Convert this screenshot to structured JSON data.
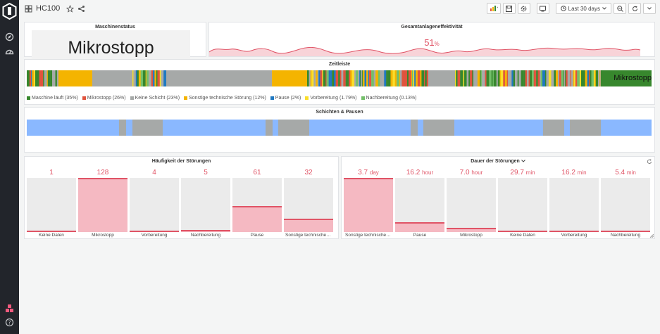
{
  "header": {
    "title": "HC100",
    "time_range": "Last 30 days"
  },
  "panels": {
    "maschinenstatus": {
      "title": "Maschinenstatus",
      "value": "Mikrostopp"
    },
    "oee": {
      "title": "Gesamtanlageneffektivität",
      "value": "51",
      "unit": "%"
    },
    "zeitleiste": {
      "title": "Zeitleiste",
      "current_state": "Mikrostopp",
      "legend": [
        {
          "label": "Maschine läuft (35%)",
          "color": "#37872d"
        },
        {
          "label": "Mikrostopp (26%)",
          "color": "#e0533d"
        },
        {
          "label": "Keine Schicht (23%)",
          "color": "#a6a9a8"
        },
        {
          "label": "Sonstige technische Störung (12%)",
          "color": "#f4b400"
        },
        {
          "label": "Pause (2%)",
          "color": "#1f78c1"
        },
        {
          "label": "Vorbereitung (1.79%)",
          "color": "#fade2a"
        },
        {
          "label": "Nachbereitung (0.13%)",
          "color": "#73bf69"
        }
      ]
    },
    "schichten": {
      "title": "Schichten & Pausen"
    },
    "haeufigkeit": {
      "title": "Häufigkeit der Störungen",
      "items": [
        {
          "label": "Keine Daten",
          "value": "1",
          "fill": 0.01
        },
        {
          "label": "Mikrostopp",
          "value": "128",
          "fill": 1.0
        },
        {
          "label": "Vorbereitung",
          "value": "4",
          "fill": 0.03
        },
        {
          "label": "Nachbereitung",
          "value": "5",
          "fill": 0.04
        },
        {
          "label": "Pause",
          "value": "61",
          "fill": 0.48
        },
        {
          "label": "Sonstige technische S...",
          "value": "32",
          "fill": 0.25
        }
      ]
    },
    "dauer": {
      "title": "Dauer der Störungen",
      "items": [
        {
          "label": "Sonstige technische S...",
          "value": "3.7",
          "unit": "day",
          "fill": 1.0
        },
        {
          "label": "Pause",
          "value": "16.2",
          "unit": "hour",
          "fill": 0.18
        },
        {
          "label": "Mikrostopp",
          "value": "7.0",
          "unit": "hour",
          "fill": 0.08
        },
        {
          "label": "Keine Daten",
          "value": "29.7",
          "unit": "min",
          "fill": 0.01
        },
        {
          "label": "Vorbereitung",
          "value": "16.2",
          "unit": "min",
          "fill": 0.005
        },
        {
          "label": "Nachbereitung",
          "value": "5.4",
          "unit": "min",
          "fill": 0.003
        }
      ]
    }
  }
}
